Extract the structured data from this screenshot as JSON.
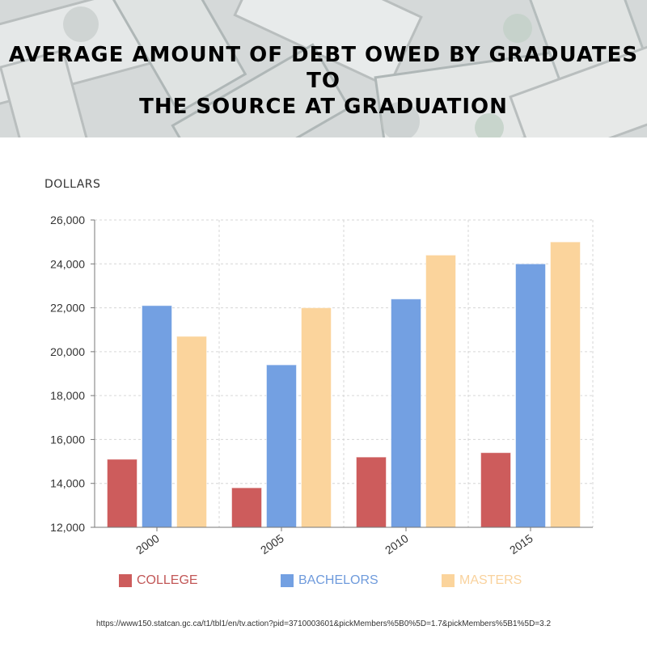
{
  "header": {
    "title_line1": "AVERAGE AMOUNT OF DEBT OWED BY GRADUATES TO",
    "title_line2": "THE SOURCE AT GRADUATION"
  },
  "axis": {
    "ylabel": "DOLLARS"
  },
  "legend": [
    {
      "label": "COLLEGE",
      "color": "#cd5c5c"
    },
    {
      "label": "BACHELORS",
      "color": "#73a0e2"
    },
    {
      "label": "MASTERS",
      "color": "#fbd49c"
    }
  ],
  "source": "https://www150.statcan.gc.ca/t1/tbl1/en/tv.action?pid=3710003601&pickMembers%5B0%5D=1.7&pickMembers%5B1%5D=3.2",
  "chart_data": {
    "type": "bar",
    "title": "Average amount of debt owed by graduates to the source at graduation",
    "xlabel": "",
    "ylabel": "DOLLARS",
    "categories": [
      "2000",
      "2005",
      "2010",
      "2015"
    ],
    "series": [
      {
        "name": "COLLEGE",
        "color": "#cd5c5c",
        "values": [
          15100,
          13800,
          15200,
          15400
        ]
      },
      {
        "name": "BACHELORS",
        "color": "#73a0e2",
        "values": [
          22100,
          19400,
          22400,
          24000
        ]
      },
      {
        "name": "MASTERS",
        "color": "#fbd49c",
        "values": [
          20700,
          22000,
          24400,
          25000
        ]
      }
    ],
    "ylim": [
      12000,
      26000
    ],
    "yticks": [
      12000,
      14000,
      16000,
      18000,
      20000,
      22000,
      24000,
      26000
    ],
    "ytick_labels": [
      "12,000",
      "14,000",
      "16,000",
      "18,000",
      "20,000",
      "22,000",
      "24,000",
      "26,000"
    ],
    "grid": true,
    "legend_position": "bottom"
  }
}
